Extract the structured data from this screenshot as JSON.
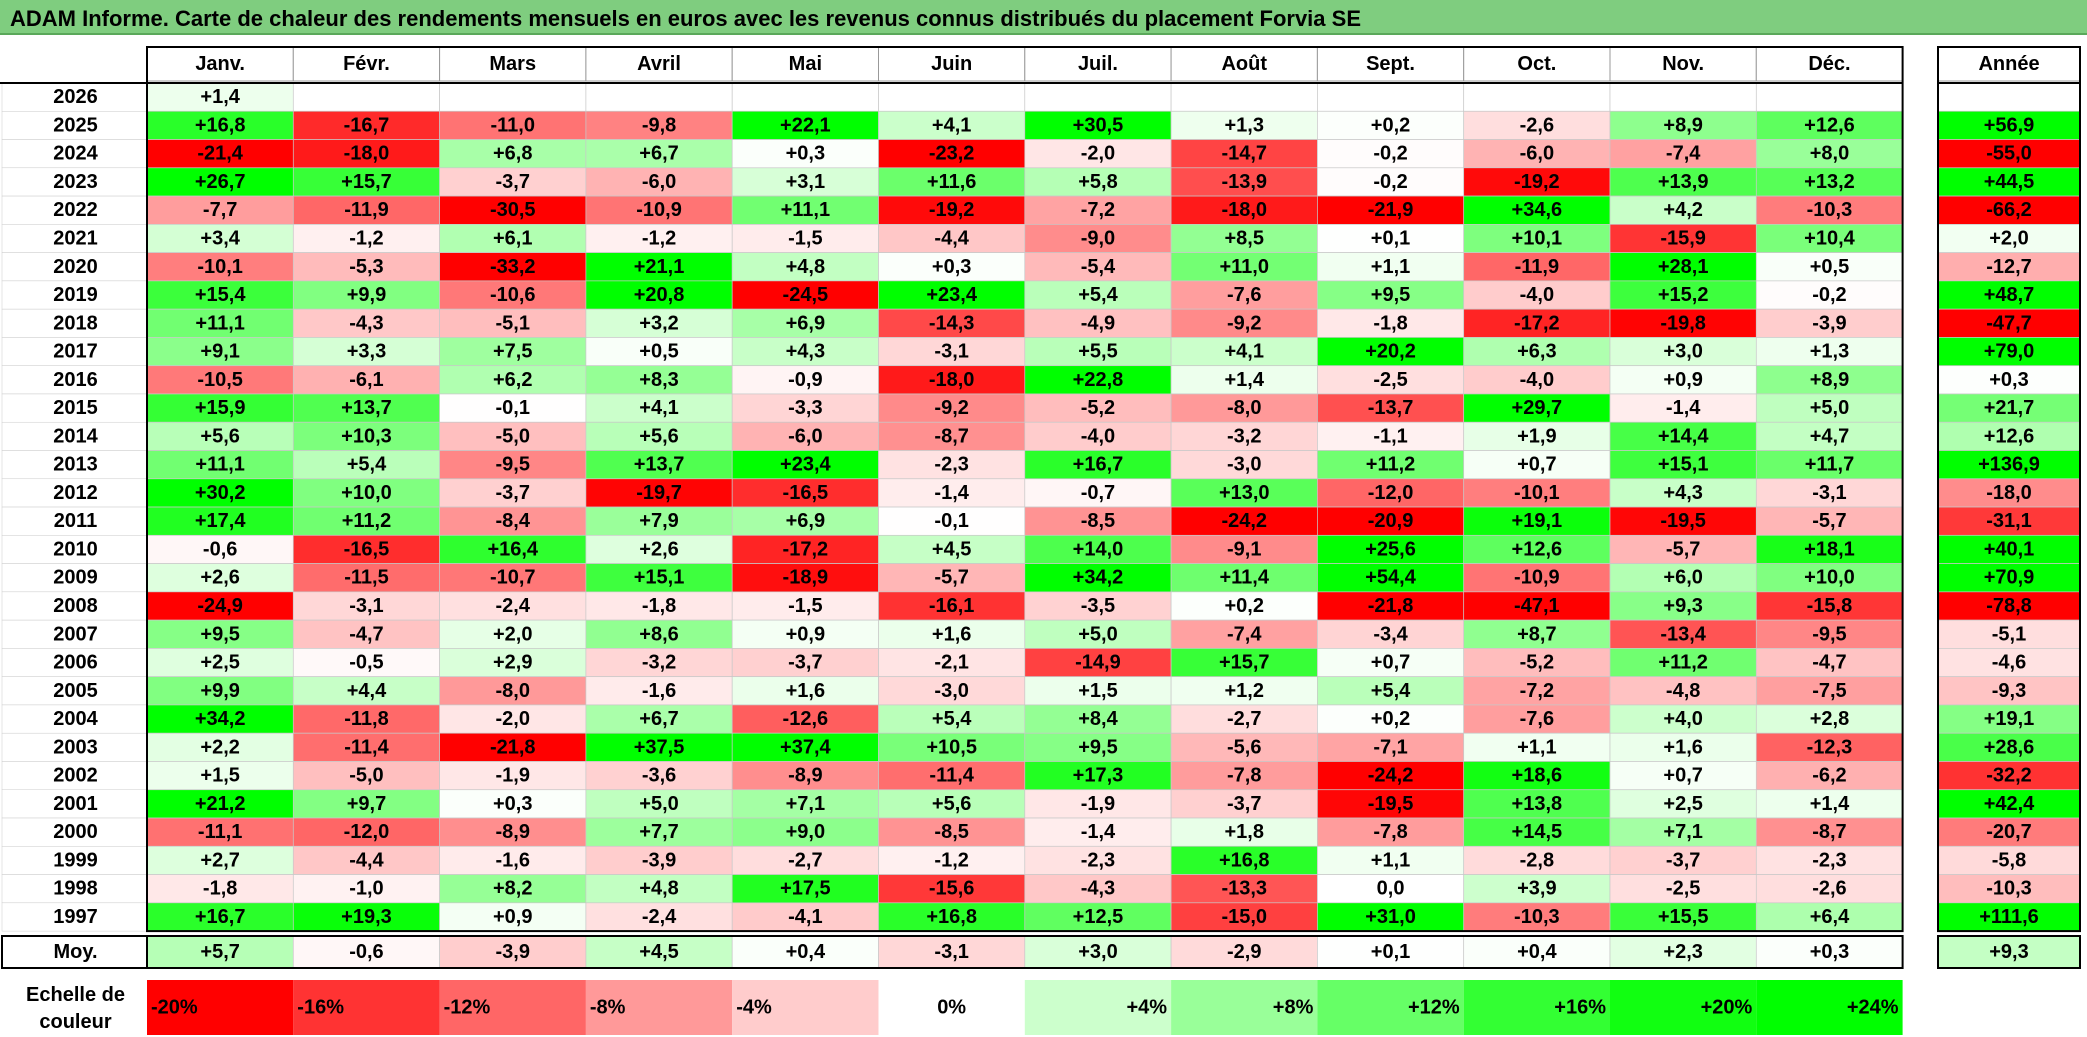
{
  "title": "ADAM Informe. Carte de chaleur des rendements mensuels en euros avec les revenus connus distribués du placement Forvia SE",
  "chart_data": {
    "type": "heatmap",
    "months": [
      "Janv.",
      "Févr.",
      "Mars",
      "Avril",
      "Mai",
      "Juin",
      "Juil.",
      "Août",
      "Sept.",
      "Oct.",
      "Nov.",
      "Déc."
    ],
    "year_header": "Année",
    "rows": [
      {
        "year": "2026",
        "values": [
          "+1,4",
          null,
          null,
          null,
          null,
          null,
          null,
          null,
          null,
          null,
          null,
          null
        ],
        "annual": null
      },
      {
        "year": "2025",
        "values": [
          "+16,8",
          "-16,7",
          "-11,0",
          "-9,8",
          "+22,1",
          "+4,1",
          "+30,5",
          "+1,3",
          "+0,2",
          "-2,6",
          "+8,9",
          "+12,6"
        ],
        "annual": "+56,9"
      },
      {
        "year": "2024",
        "values": [
          "-21,4",
          "-18,0",
          "+6,8",
          "+6,7",
          "+0,3",
          "-23,2",
          "-2,0",
          "-14,7",
          "-0,2",
          "-6,0",
          "-7,4",
          "+8,0"
        ],
        "annual": "-55,0"
      },
      {
        "year": "2023",
        "values": [
          "+26,7",
          "+15,7",
          "-3,7",
          "-6,0",
          "+3,1",
          "+11,6",
          "+5,8",
          "-13,9",
          "-0,2",
          "-19,2",
          "+13,9",
          "+13,2"
        ],
        "annual": "+44,5"
      },
      {
        "year": "2022",
        "values": [
          "-7,7",
          "-11,9",
          "-30,5",
          "-10,9",
          "+11,1",
          "-19,2",
          "-7,2",
          "-18,0",
          "-21,9",
          "+34,6",
          "+4,2",
          "-10,3"
        ],
        "annual": "-66,2"
      },
      {
        "year": "2021",
        "values": [
          "+3,4",
          "-1,2",
          "+6,1",
          "-1,2",
          "-1,5",
          "-4,4",
          "-9,0",
          "+8,5",
          "+0,1",
          "+10,1",
          "-15,9",
          "+10,4"
        ],
        "annual": "+2,0"
      },
      {
        "year": "2020",
        "values": [
          "-10,1",
          "-5,3",
          "-33,2",
          "+21,1",
          "+4,8",
          "+0,3",
          "-5,4",
          "+11,0",
          "+1,1",
          "-11,9",
          "+28,1",
          "+0,5"
        ],
        "annual": "-12,7"
      },
      {
        "year": "2019",
        "values": [
          "+15,4",
          "+9,9",
          "-10,6",
          "+20,8",
          "-24,5",
          "+23,4",
          "+5,4",
          "-7,6",
          "+9,5",
          "-4,0",
          "+15,2",
          "-0,2"
        ],
        "annual": "+48,7"
      },
      {
        "year": "2018",
        "values": [
          "+11,1",
          "-4,3",
          "-5,1",
          "+3,2",
          "+6,9",
          "-14,3",
          "-4,9",
          "-9,2",
          "-1,8",
          "-17,2",
          "-19,8",
          "-3,9"
        ],
        "annual": "-47,7"
      },
      {
        "year": "2017",
        "values": [
          "+9,1",
          "+3,3",
          "+7,5",
          "+0,5",
          "+4,3",
          "-3,1",
          "+5,5",
          "+4,1",
          "+20,2",
          "+6,3",
          "+3,0",
          "+1,3"
        ],
        "annual": "+79,0"
      },
      {
        "year": "2016",
        "values": [
          "-10,5",
          "-6,1",
          "+6,2",
          "+8,3",
          "-0,9",
          "-18,0",
          "+22,8",
          "+1,4",
          "-2,5",
          "-4,0",
          "+0,9",
          "+8,9"
        ],
        "annual": "+0,3"
      },
      {
        "year": "2015",
        "values": [
          "+15,9",
          "+13,7",
          "-0,1",
          "+4,1",
          "-3,3",
          "-9,2",
          "-5,2",
          "-8,0",
          "-13,7",
          "+29,7",
          "-1,4",
          "+5,0"
        ],
        "annual": "+21,7"
      },
      {
        "year": "2014",
        "values": [
          "+5,6",
          "+10,3",
          "-5,0",
          "+5,6",
          "-6,0",
          "-8,7",
          "-4,0",
          "-3,2",
          "-1,1",
          "+1,9",
          "+14,4",
          "+4,7"
        ],
        "annual": "+12,6"
      },
      {
        "year": "2013",
        "values": [
          "+11,1",
          "+5,4",
          "-9,5",
          "+13,7",
          "+23,4",
          "-2,3",
          "+16,7",
          "-3,0",
          "+11,2",
          "+0,7",
          "+15,1",
          "+11,7"
        ],
        "annual": "+136,9"
      },
      {
        "year": "2012",
        "values": [
          "+30,2",
          "+10,0",
          "-3,7",
          "-19,7",
          "-16,5",
          "-1,4",
          "-0,7",
          "+13,0",
          "-12,0",
          "-10,1",
          "+4,3",
          "-3,1"
        ],
        "annual": "-18,0"
      },
      {
        "year": "2011",
        "values": [
          "+17,4",
          "+11,2",
          "-8,4",
          "+7,9",
          "+6,9",
          "-0,1",
          "-8,5",
          "-24,2",
          "-20,9",
          "+19,1",
          "-19,5",
          "-5,7"
        ],
        "annual": "-31,1"
      },
      {
        "year": "2010",
        "values": [
          "-0,6",
          "-16,5",
          "+16,4",
          "+2,6",
          "-17,2",
          "+4,5",
          "+14,0",
          "-9,1",
          "+25,6",
          "+12,6",
          "-5,7",
          "+18,1"
        ],
        "annual": "+40,1"
      },
      {
        "year": "2009",
        "values": [
          "+2,6",
          "-11,5",
          "-10,7",
          "+15,1",
          "-18,9",
          "-5,7",
          "+34,2",
          "+11,4",
          "+54,4",
          "-10,9",
          "+6,0",
          "+10,0"
        ],
        "annual": "+70,9"
      },
      {
        "year": "2008",
        "values": [
          "-24,9",
          "-3,1",
          "-2,4",
          "-1,8",
          "-1,5",
          "-16,1",
          "-3,5",
          "+0,2",
          "-21,8",
          "-47,1",
          "+9,3",
          "-15,8"
        ],
        "annual": "-78,8"
      },
      {
        "year": "2007",
        "values": [
          "+9,5",
          "-4,7",
          "+2,0",
          "+8,6",
          "+0,9",
          "+1,6",
          "+5,0",
          "-7,4",
          "-3,4",
          "+8,7",
          "-13,4",
          "-9,5"
        ],
        "annual": "-5,1"
      },
      {
        "year": "2006",
        "values": [
          "+2,5",
          "-0,5",
          "+2,9",
          "-3,2",
          "-3,7",
          "-2,1",
          "-14,9",
          "+15,7",
          "+0,7",
          "-5,2",
          "+11,2",
          "-4,7"
        ],
        "annual": "-4,6"
      },
      {
        "year": "2005",
        "values": [
          "+9,9",
          "+4,4",
          "-8,0",
          "-1,6",
          "+1,6",
          "-3,0",
          "+1,5",
          "+1,2",
          "+5,4",
          "-7,2",
          "-4,8",
          "-7,5"
        ],
        "annual": "-9,3"
      },
      {
        "year": "2004",
        "values": [
          "+34,2",
          "-11,8",
          "-2,0",
          "+6,7",
          "-12,6",
          "+5,4",
          "+8,4",
          "-2,7",
          "+0,2",
          "-7,6",
          "+4,0",
          "+2,8"
        ],
        "annual": "+19,1"
      },
      {
        "year": "2003",
        "values": [
          "+2,2",
          "-11,4",
          "-21,8",
          "+37,5",
          "+37,4",
          "+10,5",
          "+9,5",
          "-5,6",
          "-7,1",
          "+1,1",
          "+1,6",
          "-12,3"
        ],
        "annual": "+28,6"
      },
      {
        "year": "2002",
        "values": [
          "+1,5",
          "-5,0",
          "-1,9",
          "-3,6",
          "-8,9",
          "-11,4",
          "+17,3",
          "-7,8",
          "-24,2",
          "+18,6",
          "+0,7",
          "-6,2"
        ],
        "annual": "-32,2"
      },
      {
        "year": "2001",
        "values": [
          "+21,2",
          "+9,7",
          "+0,3",
          "+5,0",
          "+7,1",
          "+5,6",
          "-1,9",
          "-3,7",
          "-19,5",
          "+13,8",
          "+2,5",
          "+1,4"
        ],
        "annual": "+42,4"
      },
      {
        "year": "2000",
        "values": [
          "-11,1",
          "-12,0",
          "-8,9",
          "+7,7",
          "+9,0",
          "-8,5",
          "-1,4",
          "+1,8",
          "-7,8",
          "+14,5",
          "+7,1",
          "-8,7"
        ],
        "annual": "-20,7"
      },
      {
        "year": "1999",
        "values": [
          "+2,7",
          "-4,4",
          "-1,6",
          "-3,9",
          "-2,7",
          "-1,2",
          "-2,3",
          "+16,8",
          "+1,1",
          "-2,8",
          "-3,7",
          "-2,3"
        ],
        "annual": "-5,8"
      },
      {
        "year": "1998",
        "values": [
          "-1,8",
          "-1,0",
          "+8,2",
          "+4,8",
          "+17,5",
          "-15,6",
          "-4,3",
          "-13,3",
          "0,0",
          "+3,9",
          "-2,5",
          "-2,6"
        ],
        "annual": "-10,3"
      },
      {
        "year": "1997",
        "values": [
          "+16,7",
          "+19,3",
          "+0,9",
          "-2,4",
          "-4,1",
          "+16,8",
          "+12,5",
          "-15,0",
          "+31,0",
          "-10,3",
          "+15,5",
          "+6,4"
        ],
        "annual": "+111,6"
      }
    ],
    "average": {
      "label": "Moy.",
      "values": [
        "+5,7",
        "-0,6",
        "-3,9",
        "+4,5",
        "+0,4",
        "-3,1",
        "+3,0",
        "-2,9",
        "+0,1",
        "+0,4",
        "+2,3",
        "+0,3"
      ],
      "annual": "+9,3"
    },
    "scale": {
      "label_line1": "Echelle de",
      "label_line2": "couleur",
      "stops": [
        "-20%",
        "-16%",
        "-12%",
        "-8%",
        "-4%",
        "0%",
        "+4%",
        "+8%",
        "+12%",
        "+16%",
        "+20%",
        "+24%"
      ],
      "colors": [
        "#ff0000",
        "#ff3333",
        "#ff6666",
        "#ff9999",
        "#ffcccc",
        "#ffffff",
        "#ccffcc",
        "#99ff99",
        "#66ff66",
        "#33ff33",
        "#11ff11",
        "#00ff00"
      ]
    },
    "colors": {
      "negative": "#ff0000",
      "neutral": "#ffffff",
      "positive": "#00ff00"
    }
  }
}
